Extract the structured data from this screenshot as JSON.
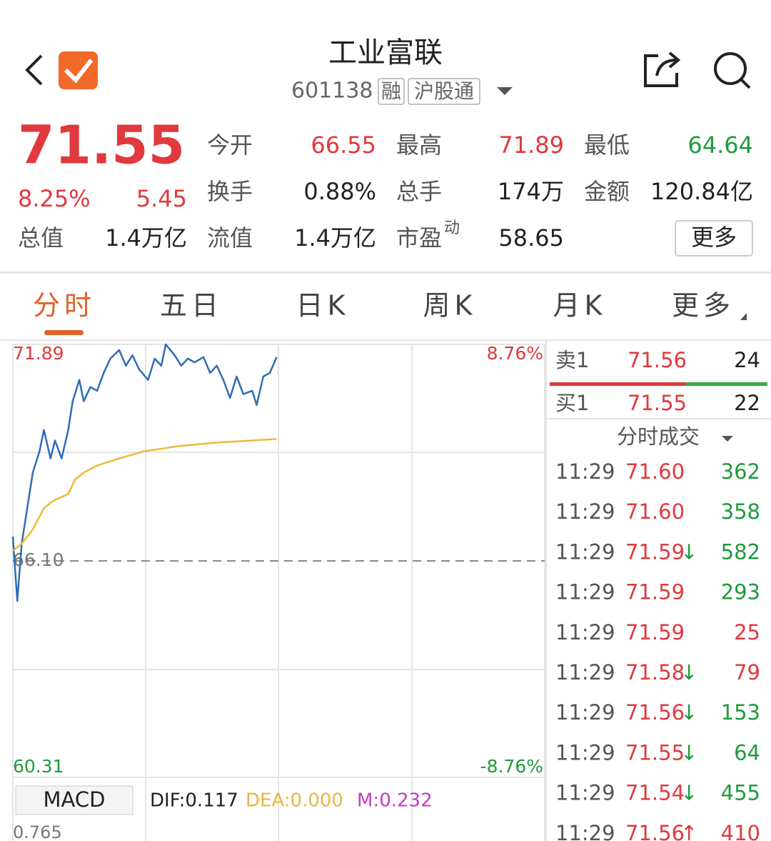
{
  "header": {
    "title": "工业富联",
    "code": "601138",
    "badges": [
      "融",
      "沪股通"
    ]
  },
  "quote": {
    "price": "71.55",
    "change_percent": "8.25%",
    "change": "5.45",
    "stats": [
      {
        "label": "今开",
        "value": "66.55"
      },
      {
        "label": "最高",
        "value": "71.89"
      },
      {
        "label": "最低",
        "value": "64.64"
      },
      {
        "label": "换手",
        "value": "0.88%"
      },
      {
        "label": "总手",
        "value": "174万"
      },
      {
        "label": "金额",
        "value": "120.84亿"
      },
      {
        "label": "总值",
        "value": "1.4万亿"
      },
      {
        "label": "流值",
        "value": "1.4万亿"
      },
      {
        "label": "市盈",
        "label_sup": "动",
        "value": "58.65"
      }
    ],
    "more_button": "更多"
  },
  "tabs": [
    "分时",
    "五日",
    "日K",
    "周K",
    "月K",
    "更多"
  ],
  "chart_data": {
    "type": "line",
    "xlim": [
      0,
      240
    ],
    "ylim": [
      60.31,
      71.89
    ],
    "yticks": [
      71.89,
      {
        "value": 66.1,
        "label": "66.10"
      },
      60.31
    ],
    "y2lim": [
      -8.76,
      8.76
    ],
    "y2ticks": [
      {
        "value": 8.76,
        "label": "8.76%"
      },
      {
        "value": -8.76,
        "label": "-8.76%"
      }
    ],
    "series": [
      {
        "color": "#2f6db5",
        "x": [
          0,
          2,
          4,
          7,
          9,
          12,
          14,
          17,
          19,
          22,
          25,
          27,
          30,
          32,
          35,
          38,
          41,
          44,
          48,
          51,
          54,
          57,
          61,
          64,
          67,
          69,
          73,
          76,
          79,
          82,
          86,
          89,
          92,
          95,
          98,
          101,
          104,
          108,
          110,
          113,
          116,
          119
        ],
        "values": [
          66.75,
          65.03,
          66.56,
          67.7,
          68.46,
          69.03,
          69.6,
          68.84,
          69.32,
          68.84,
          69.6,
          70.37,
          70.94,
          70.37,
          70.75,
          70.65,
          71.13,
          71.51,
          71.74,
          71.32,
          71.6,
          71.22,
          70.94,
          71.51,
          71.32,
          71.89,
          71.6,
          71.32,
          71.51,
          71.41,
          71.55,
          71.13,
          71.32,
          70.94,
          70.46,
          71.03,
          70.56,
          70.65,
          70.27,
          71.03,
          71.13,
          71.55
        ]
      },
      {
        "color": "#f0b93a",
        "x": [
          0,
          4,
          9,
          14,
          18,
          25,
          28,
          32,
          38,
          48,
          59,
          75,
          91,
          119
        ],
        "values": [
          66.37,
          66.56,
          66.94,
          67.51,
          67.7,
          67.89,
          68.27,
          68.46,
          68.65,
          68.84,
          69.03,
          69.17,
          69.26,
          69.36
        ]
      }
    ]
  },
  "macd": {
    "button": "MACD",
    "dif": "DIF:0.117",
    "dea": "DEA:0.000",
    "m": "M:0.232",
    "axis_top": "0.765"
  },
  "order_book": {
    "ask": {
      "label": "卖1",
      "price": "71.56",
      "volume": "24"
    },
    "bid": {
      "label": "买1",
      "price": "71.55",
      "volume": "22"
    }
  },
  "trades": {
    "title": "分时成交",
    "rows": [
      {
        "time": "11:29",
        "price": "71.60",
        "volume": "362",
        "color": "#1f9a3c"
      },
      {
        "time": "11:29",
        "price": "71.60",
        "volume": "358",
        "color": "#1f9a3c"
      },
      {
        "time": "11:29",
        "price": "71.59",
        "arrow": "↓",
        "volume": "582",
        "color": "#1f9a3c"
      },
      {
        "time": "11:29",
        "price": "71.59",
        "volume": "293",
        "color": "#1f9a3c"
      },
      {
        "time": "11:29",
        "price": "71.59",
        "volume": "25",
        "color": "#e0393e"
      },
      {
        "time": "11:29",
        "price": "71.58",
        "arrow": "↓",
        "volume": "79",
        "color": "#e0393e"
      },
      {
        "time": "11:29",
        "price": "71.56",
        "arrow": "↓",
        "volume": "153",
        "color": "#1f9a3c"
      },
      {
        "time": "11:29",
        "price": "71.55",
        "arrow": "↓",
        "volume": "64",
        "color": "#1f9a3c"
      },
      {
        "time": "11:29",
        "price": "71.54",
        "arrow": "↓",
        "volume": "455",
        "color": "#1f9a3c"
      },
      {
        "time": "11:29",
        "price": "71.56",
        "arrow": "↑",
        "volume": "410",
        "color": "#e0393e"
      }
    ]
  }
}
